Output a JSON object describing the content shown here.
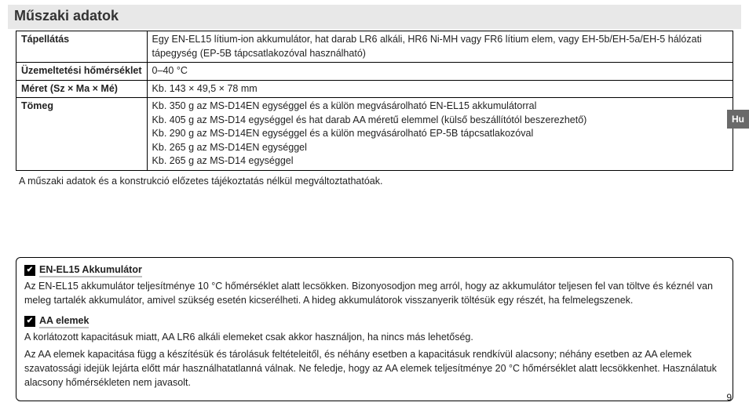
{
  "title": "Műszaki adatok",
  "langTab": "Hu",
  "pageNumber": "9",
  "table": {
    "rows": [
      {
        "label": "Tápellátás",
        "value": "Egy EN-EL15 lítium-ion akkumulátor, hat darab LR6 alkáli, HR6 Ni-MH vagy FR6 lítium elem, vagy EH-5b/EH-5a/EH-5 hálózati tápegység (EP-5B tápcsatlakozóval használható)"
      },
      {
        "label": "Üzemeltetési hőmérséklet",
        "value": "0–40 °C"
      },
      {
        "label": "Méret (Sz × Ma × Mé)",
        "value": "Kb. 143 × 49,5 × 78 mm"
      },
      {
        "label": "Tömeg",
        "lines": [
          "Kb. 350 g az MS-D14EN egységgel és a külön megvásárolható EN-EL15 akkumulátorral",
          "Kb. 405 g az MS-D14 egységgel és hat darab AA méretű elemmel (külső beszállítótól beszerezhető)",
          "Kb. 290 g az MS-D14EN egységgel és a külön megvásárolható EP-5B tápcsatlakozóval",
          "Kb. 265 g az MS-D14EN egységgel",
          "Kb. 265 g az MS-D14 egységgel"
        ]
      }
    ]
  },
  "footnote": "A műszaki adatok és a konstrukció előzetes tájékoztatás nélkül megváltoztathatóak.",
  "box": {
    "h1": "EN-EL15 Akkumulátor",
    "p1": "Az EN-EL15 akkumulátor teljesítménye 10 °C hőmérséklet alatt lecsökken. Bizonyosodjon meg arról, hogy az akkumulátor teljesen fel van töltve és kéznél van meleg tartalék akkumulátor, amivel szükség esetén kicserélheti. A hideg akkumulátorok visszanyerik töltésük egy részét, ha felmelegszenek.",
    "h2": "AA elemek",
    "p2": "A korlátozott kapacitásuk miatt, AA LR6 alkáli elemeket csak akkor használjon, ha nincs más lehetőség.",
    "p3": "Az AA elemek kapacitása függ a készítésük és tárolásuk feltételeitől, és néhány esetben a kapacitásuk rendkívül alacsony; néhány esetben az AA elemek szavatossági idejük lejárta előtt már használhatatlanná válnak. Ne feledje, hogy az AA elemek teljesítménye 20 °C hőmérséklet alatt lecsökkenhet. Használatuk alacsony hőmérsékleten nem javasolt."
  }
}
